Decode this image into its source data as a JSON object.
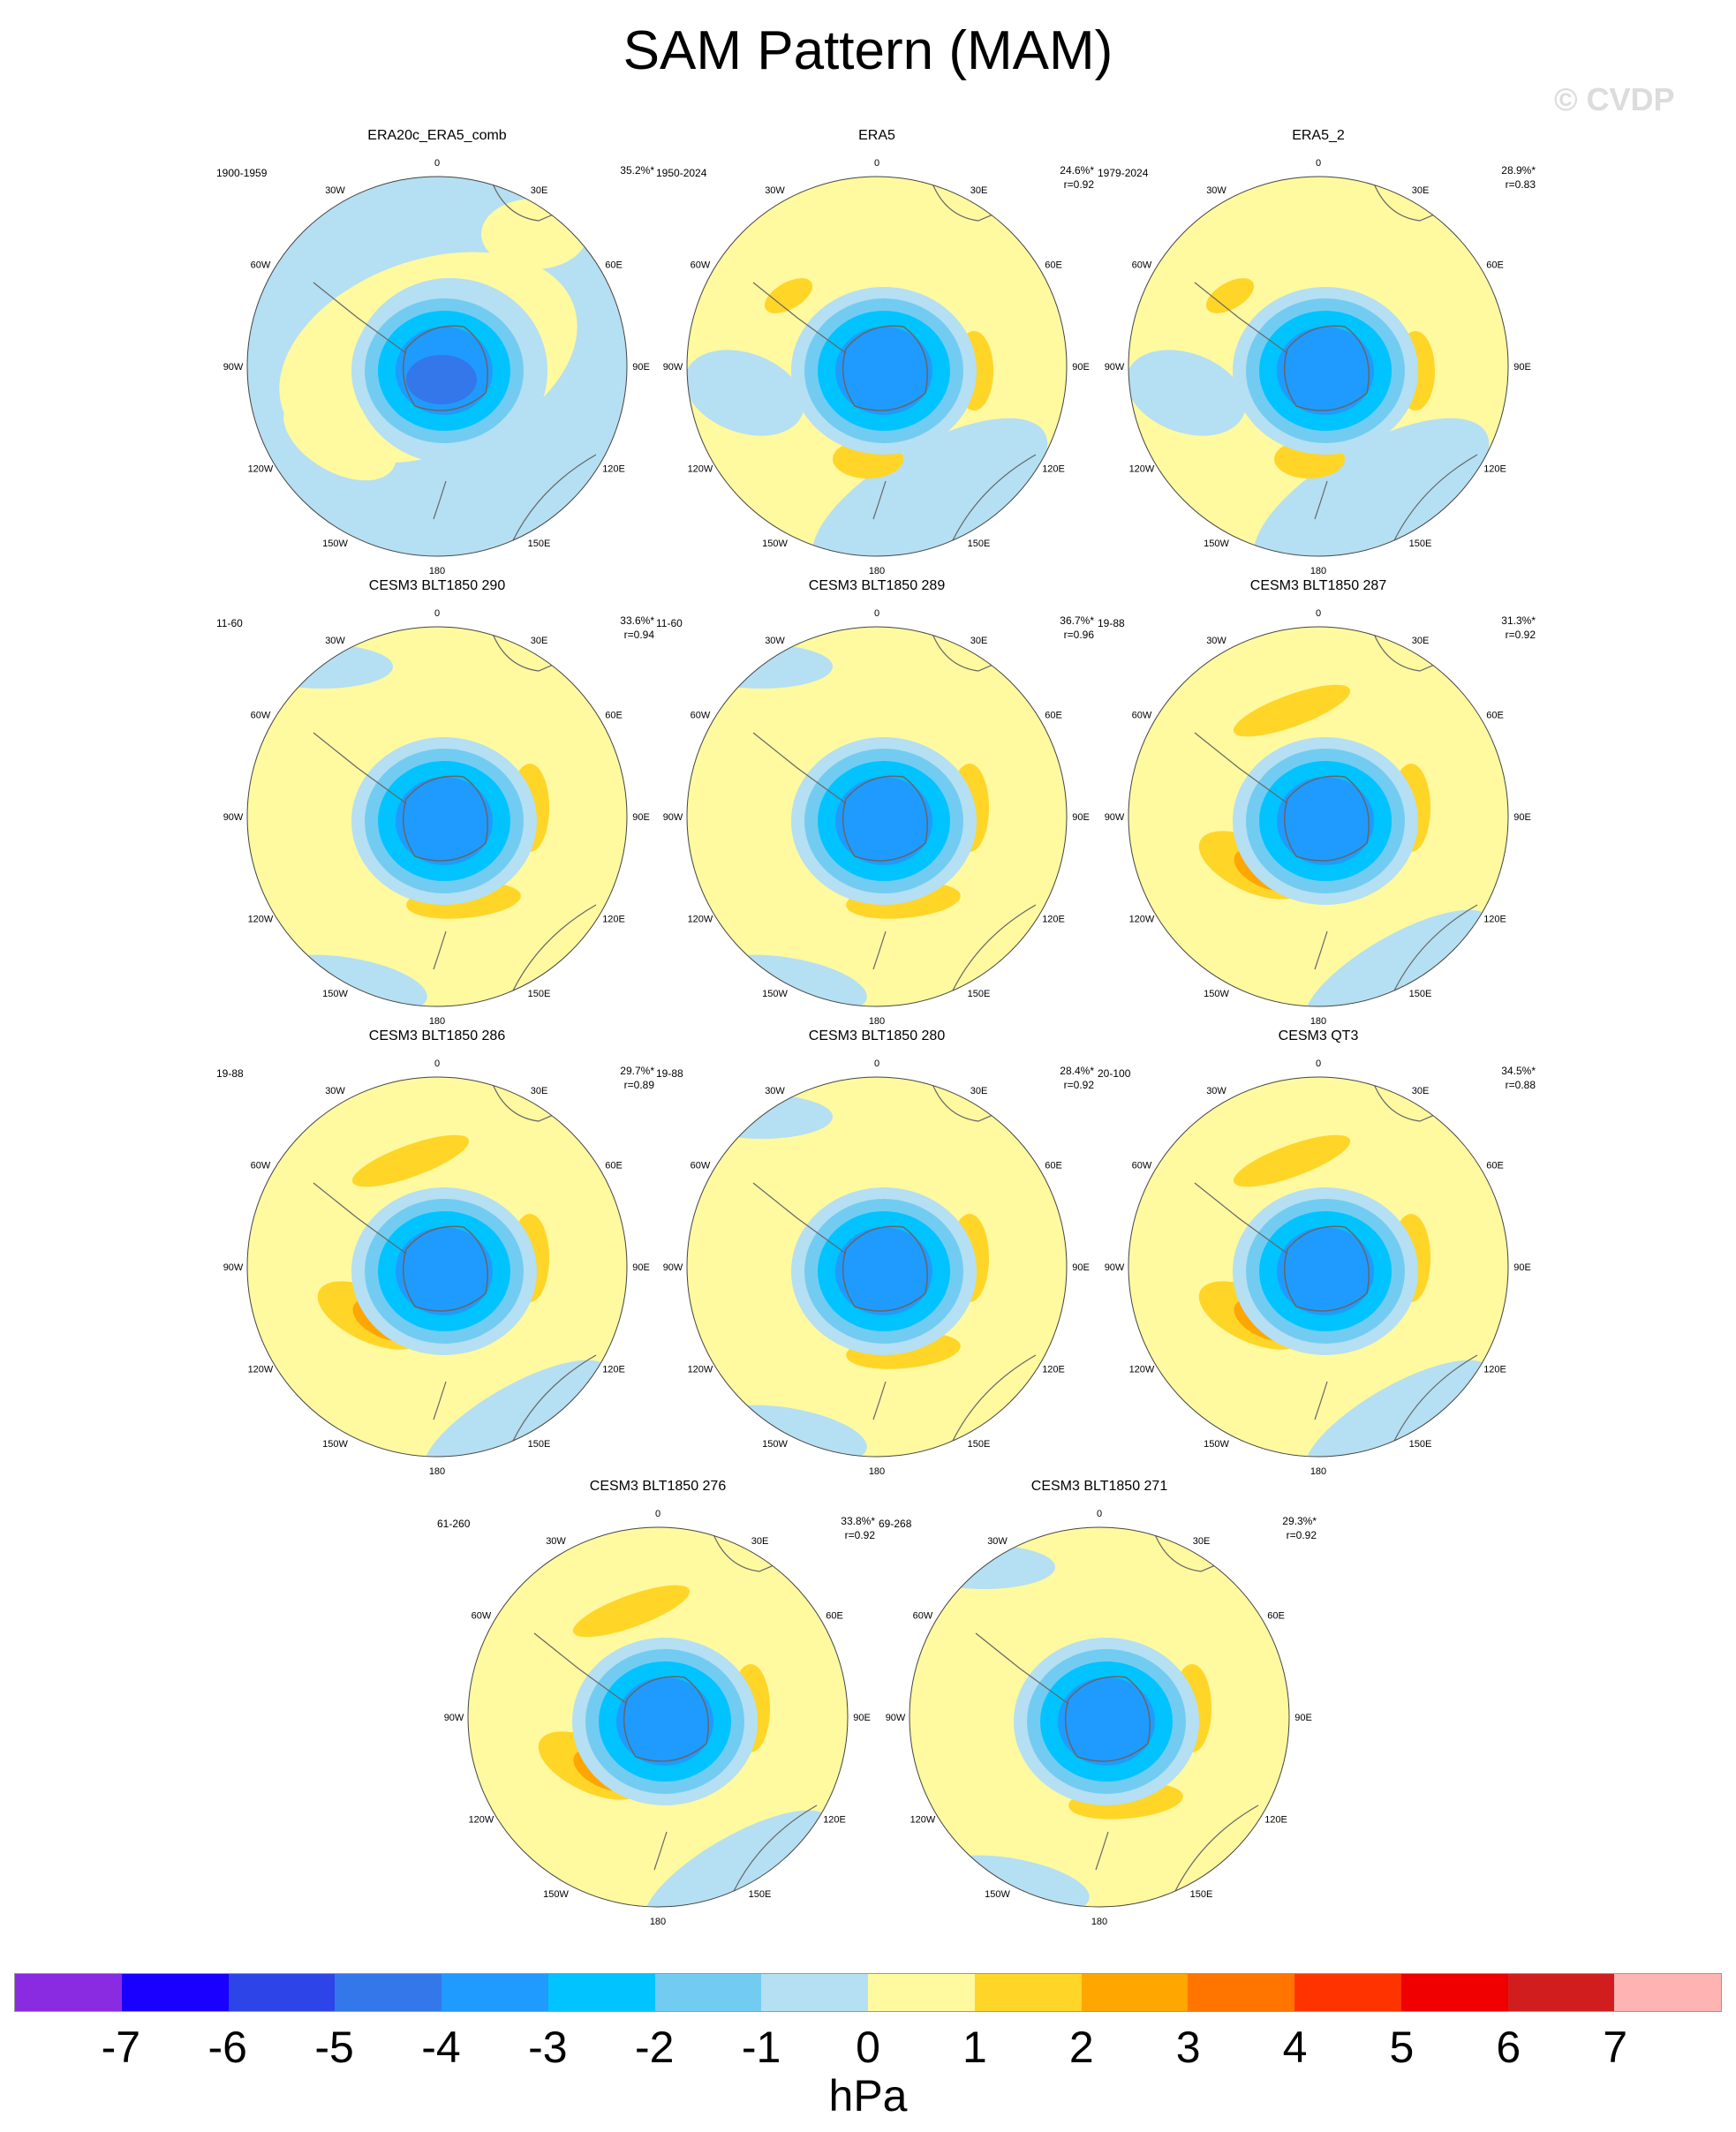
{
  "title": "SAM Pattern (MAM)",
  "watermark": "© CVDP",
  "colorbar": {
    "colors": [
      "#8a2be2",
      "#1a00ff",
      "#2c44e8",
      "#3377ea",
      "#1f9bff",
      "#00c3ff",
      "#72ccf2",
      "#b5dff2",
      "#fff9a0",
      "#ffd528",
      "#ffa600",
      "#ff7500",
      "#ff3300",
      "#f00000",
      "#d11d1d",
      "#ffb4b4"
    ],
    "labels": [
      "-7",
      "-6",
      "-5",
      "-4",
      "-3",
      "-2",
      "-1",
      "0",
      "1",
      "2",
      "3",
      "4",
      "5",
      "6",
      "7"
    ],
    "units": "hPa"
  },
  "map_labels": [
    "0",
    "30E",
    "60E",
    "90E",
    "120E",
    "150E",
    "180",
    "150W",
    "120W",
    "90W",
    "60W",
    "30W"
  ],
  "chart_data": [
    {
      "type": "heatmap",
      "title": "ERA20c_ERA5_comb",
      "years": "1900-1959",
      "variance": "35.2%*",
      "corr": "",
      "style": 0
    },
    {
      "type": "heatmap",
      "title": "ERA5",
      "years": "1950-2024",
      "variance": "24.6%*",
      "corr": "r=0.92",
      "style": 1
    },
    {
      "type": "heatmap",
      "title": "ERA5_2",
      "years": "1979-2024",
      "variance": "28.9%*",
      "corr": "r=0.83",
      "style": 1
    },
    {
      "type": "heatmap",
      "title": "CESM3 BLT1850 290",
      "years": "11-60",
      "variance": "33.6%*",
      "corr": "r=0.94",
      "style": 2
    },
    {
      "type": "heatmap",
      "title": "CESM3 BLT1850 289",
      "years": "11-60",
      "variance": "36.7%*",
      "corr": "r=0.96",
      "style": 2
    },
    {
      "type": "heatmap",
      "title": "CESM3 BLT1850 287",
      "years": "19-88",
      "variance": "31.3%*",
      "corr": "r=0.92",
      "style": 3
    },
    {
      "type": "heatmap",
      "title": "CESM3 BLT1850 286",
      "years": "19-88",
      "variance": "29.7%*",
      "corr": "r=0.89",
      "style": 3
    },
    {
      "type": "heatmap",
      "title": "CESM3 BLT1850 280",
      "years": "19-88",
      "variance": "28.4%*",
      "corr": "r=0.92",
      "style": 2
    },
    {
      "type": "heatmap",
      "title": "CESM3 QT3",
      "years": "20-100",
      "variance": "34.5%*",
      "corr": "r=0.88",
      "style": 3
    },
    {
      "type": "heatmap",
      "title": "CESM3 BLT1850 276",
      "years": "61-260",
      "variance": "33.8%*",
      "corr": "r=0.92",
      "style": 3
    },
    {
      "type": "heatmap",
      "title": "CESM3 BLT1850 271",
      "years": "69-268",
      "variance": "29.3%*",
      "corr": "r=0.92",
      "style": 2
    }
  ]
}
